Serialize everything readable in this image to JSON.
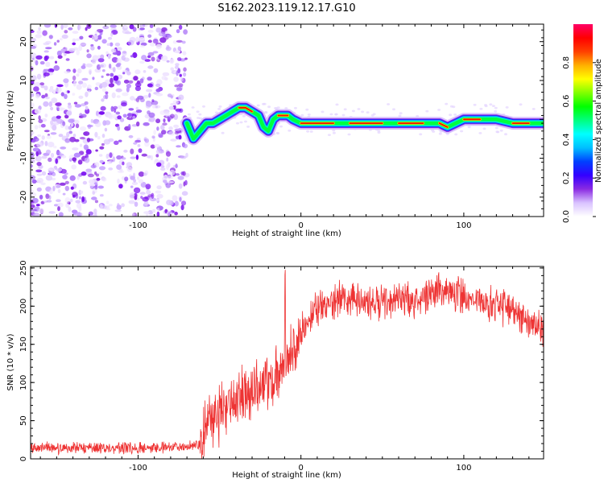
{
  "title": "S162.2023.119.12.17.G10",
  "chart_data": [
    {
      "type": "heatmap",
      "xlabel": "Height of straight line (km)",
      "ylabel": "Frequency (Hz)",
      "xlim": [
        -166,
        149
      ],
      "ylim": [
        -25,
        24.5
      ],
      "xticks": [
        -100,
        0,
        100
      ],
      "yticks": [
        -20,
        -10,
        0,
        10,
        20
      ],
      "noise_region_x": [
        -166,
        -70
      ],
      "ridge": {
        "x": [
          -70,
          -66,
          -62,
          -58,
          -54,
          -50,
          -46,
          -42,
          -38,
          -34,
          -30,
          -26,
          -23,
          -20,
          -17,
          -14,
          -11,
          -8,
          -5,
          0,
          10,
          20,
          30,
          40,
          50,
          60,
          70,
          75,
          80,
          85,
          90,
          95,
          100,
          110,
          120,
          130,
          140,
          149
        ],
        "y": [
          -1,
          -5,
          -3,
          -1,
          -1,
          0,
          1,
          2,
          3,
          3,
          2,
          1,
          -2,
          -3,
          0,
          1,
          1,
          1,
          0,
          -1,
          -1,
          -1,
          -1,
          -1,
          -1,
          -1,
          -1,
          -1,
          -1,
          -1,
          -2,
          -1,
          0,
          0,
          0,
          -1,
          -1,
          -1
        ]
      },
      "colorbar": {
        "label": "Normalized spectral amplitude",
        "ticks": [
          0.0,
          0.2,
          0.4,
          0.6,
          0.8
        ],
        "range": [
          0,
          1
        ],
        "stops": [
          "#ffffff",
          "#d9c2ff",
          "#8a2be2",
          "#3300ff",
          "#0040ff",
          "#00bfff",
          "#00ffff",
          "#00ff80",
          "#00ff00",
          "#80ff00",
          "#ffff00",
          "#ffb000",
          "#ff4000",
          "#ff0000",
          "#ff0066"
        ]
      }
    },
    {
      "type": "line",
      "xlabel": "Height of straight line (km)",
      "ylabel": "SNR (10 * v/v)",
      "xlim": [
        -166,
        149
      ],
      "ylim": [
        0,
        252
      ],
      "xticks": [
        -100,
        0,
        100
      ],
      "yticks": [
        0,
        50,
        100,
        150,
        200,
        250
      ],
      "color": "#ee3333",
      "trend": {
        "x": [
          -166,
          -140,
          -100,
          -80,
          -70,
          -62,
          -58,
          -50,
          -40,
          -30,
          -20,
          -12,
          -5,
          0,
          10,
          20,
          30,
          40,
          50,
          60,
          70,
          80,
          90,
          100,
          110,
          120,
          130,
          140,
          149
        ],
        "y": [
          14,
          14,
          14,
          15,
          16,
          20,
          40,
          60,
          80,
          90,
          100,
          120,
          140,
          165,
          195,
          205,
          210,
          205,
          205,
          210,
          210,
          218,
          220,
          212,
          205,
          200,
          195,
          180,
          165
        ]
      }
    }
  ]
}
